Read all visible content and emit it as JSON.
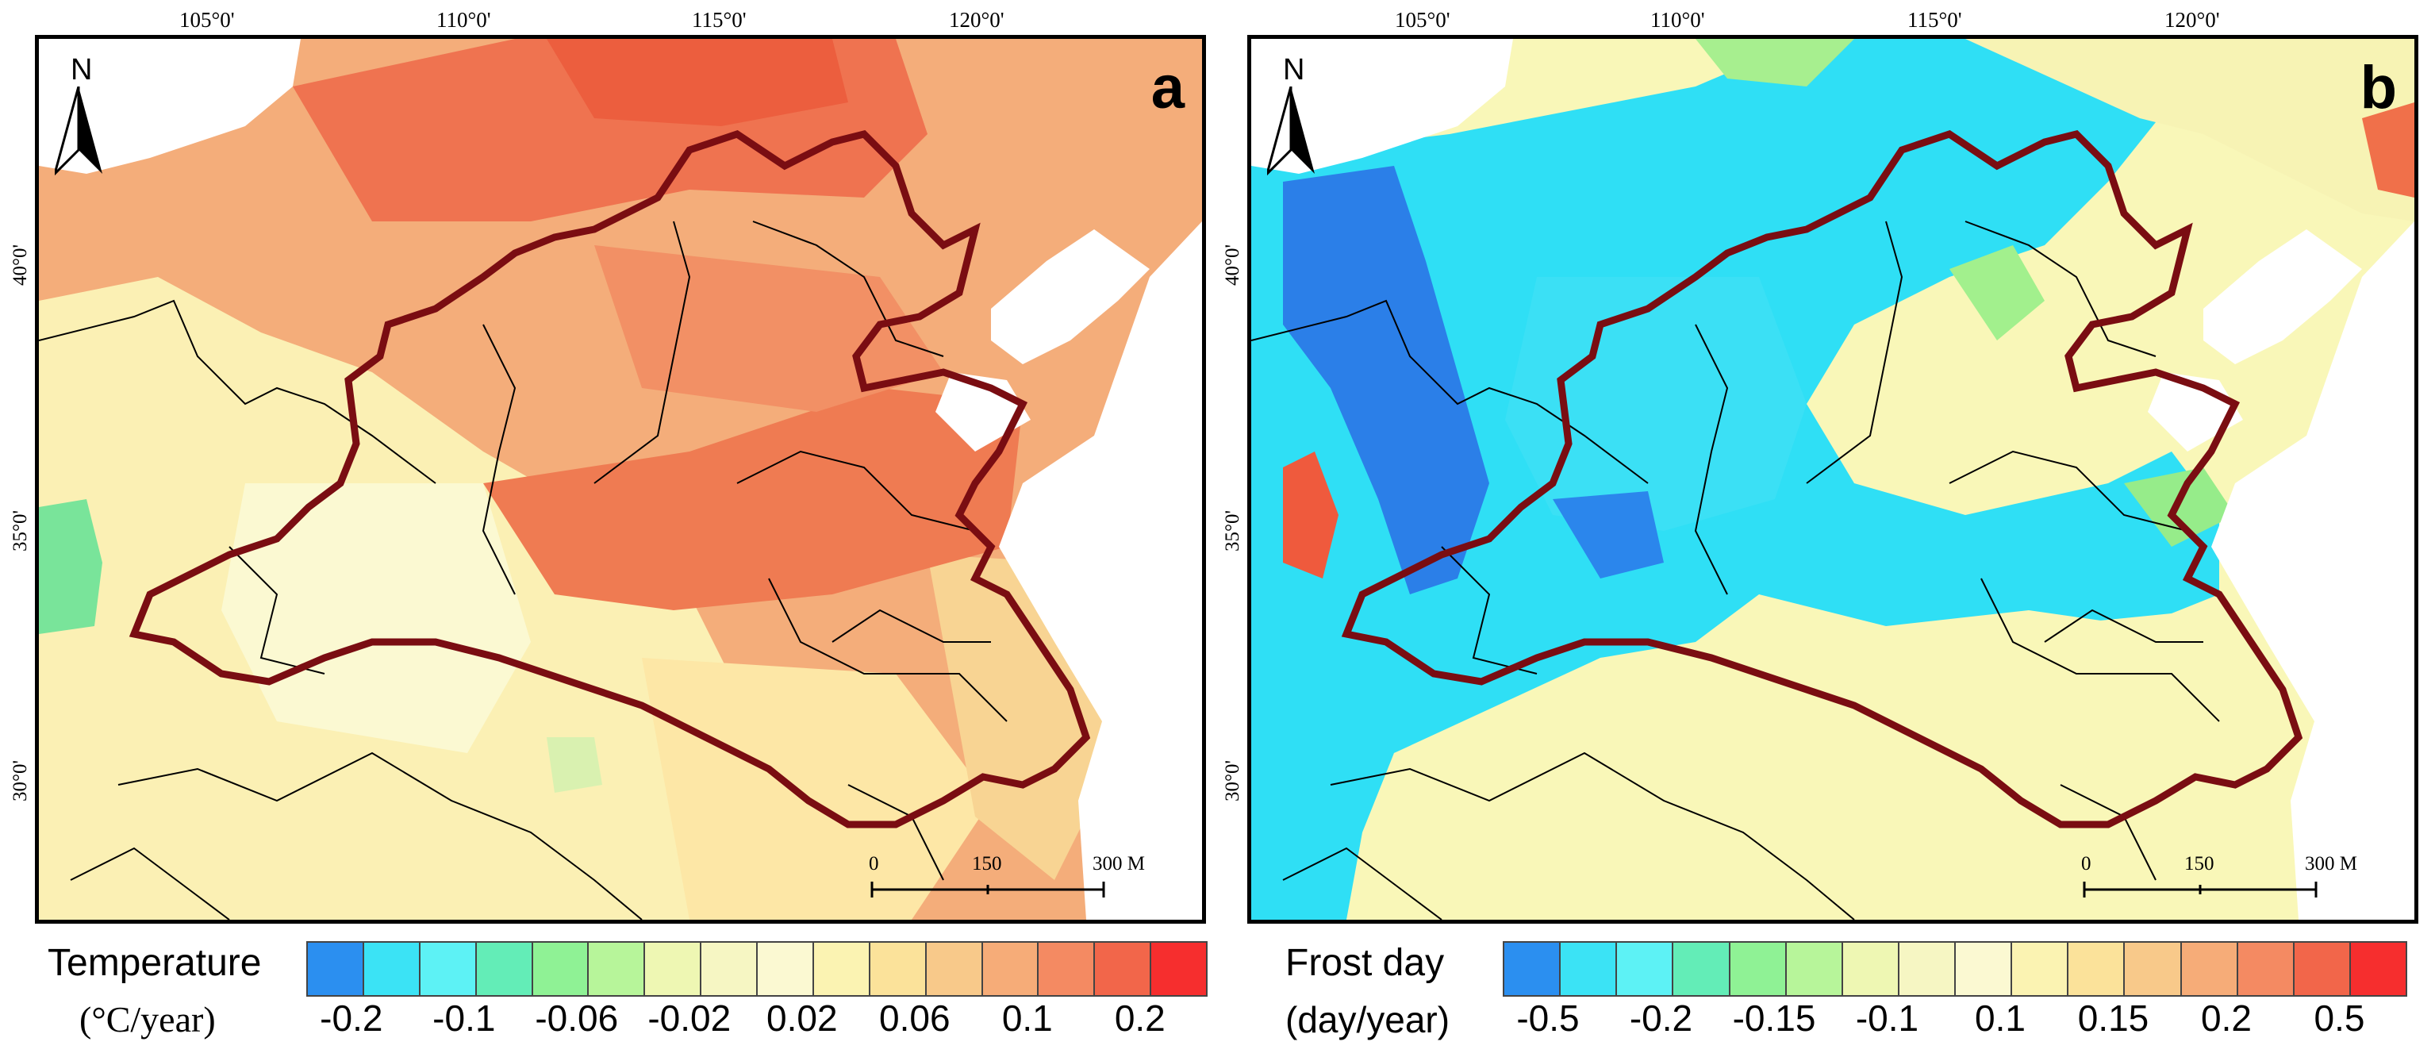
{
  "panels": {
    "a": {
      "letter": "a",
      "north_label": "N",
      "scale": {
        "zero": "0",
        "mid": "150",
        "end": "300 M"
      },
      "colors": {
        "base": "#f4ad7a",
        "hot": "#ef7048",
        "yellow": "#fbf6c2",
        "green": "#77e39a",
        "pale": "#fde9a8"
      }
    },
    "b": {
      "letter": "b",
      "north_label": "N",
      "scale": {
        "zero": "0",
        "mid": "150",
        "end": "300 M"
      },
      "colors": {
        "base": "#f9f7b8",
        "cyan": "#2ee0f5",
        "blue": "#1f8bf0",
        "green": "#98ef86",
        "red": "#ef5a3d"
      }
    }
  },
  "axes": {
    "longitude_labels": [
      "105°0'",
      "110°0'",
      "115°0'",
      "120°0'"
    ],
    "latitude_labels": [
      "40°0'",
      "35°0'",
      "30°0'"
    ]
  },
  "legends": {
    "temperature": {
      "title": "Temperature",
      "unit": "(°C/year)",
      "ticks": [
        "-0.2",
        "-0.1",
        "-0.06",
        "-0.02",
        "0.02",
        "0.06",
        "0.1",
        "0.2"
      ],
      "colors": [
        "#2b8ff0",
        "#3be3f5",
        "#5df2f5",
        "#63edb7",
        "#8ff295",
        "#b7f59a",
        "#eef7b3",
        "#f6f6c3",
        "#fbf9d2",
        "#fbf3b2",
        "#fbe29a",
        "#f8c98a",
        "#f6ac78",
        "#f48a62",
        "#f2664a",
        "#f62e2e"
      ]
    },
    "frost": {
      "title": "Frost day",
      "unit": "(day/year)",
      "ticks": [
        "-0.5",
        "-0.2",
        "-0.15",
        "-0.1",
        "0.1",
        "0.15",
        "0.2",
        "0.5"
      ],
      "colors": [
        "#2b8ff0",
        "#3be3f5",
        "#5df2f5",
        "#63edb7",
        "#8ff295",
        "#b7f59a",
        "#eef7b3",
        "#f6f6c3",
        "#fbf9d2",
        "#fbf3b2",
        "#fbe29a",
        "#f8c98a",
        "#f6ac78",
        "#f48a62",
        "#f2664a",
        "#f62e2e"
      ]
    }
  }
}
